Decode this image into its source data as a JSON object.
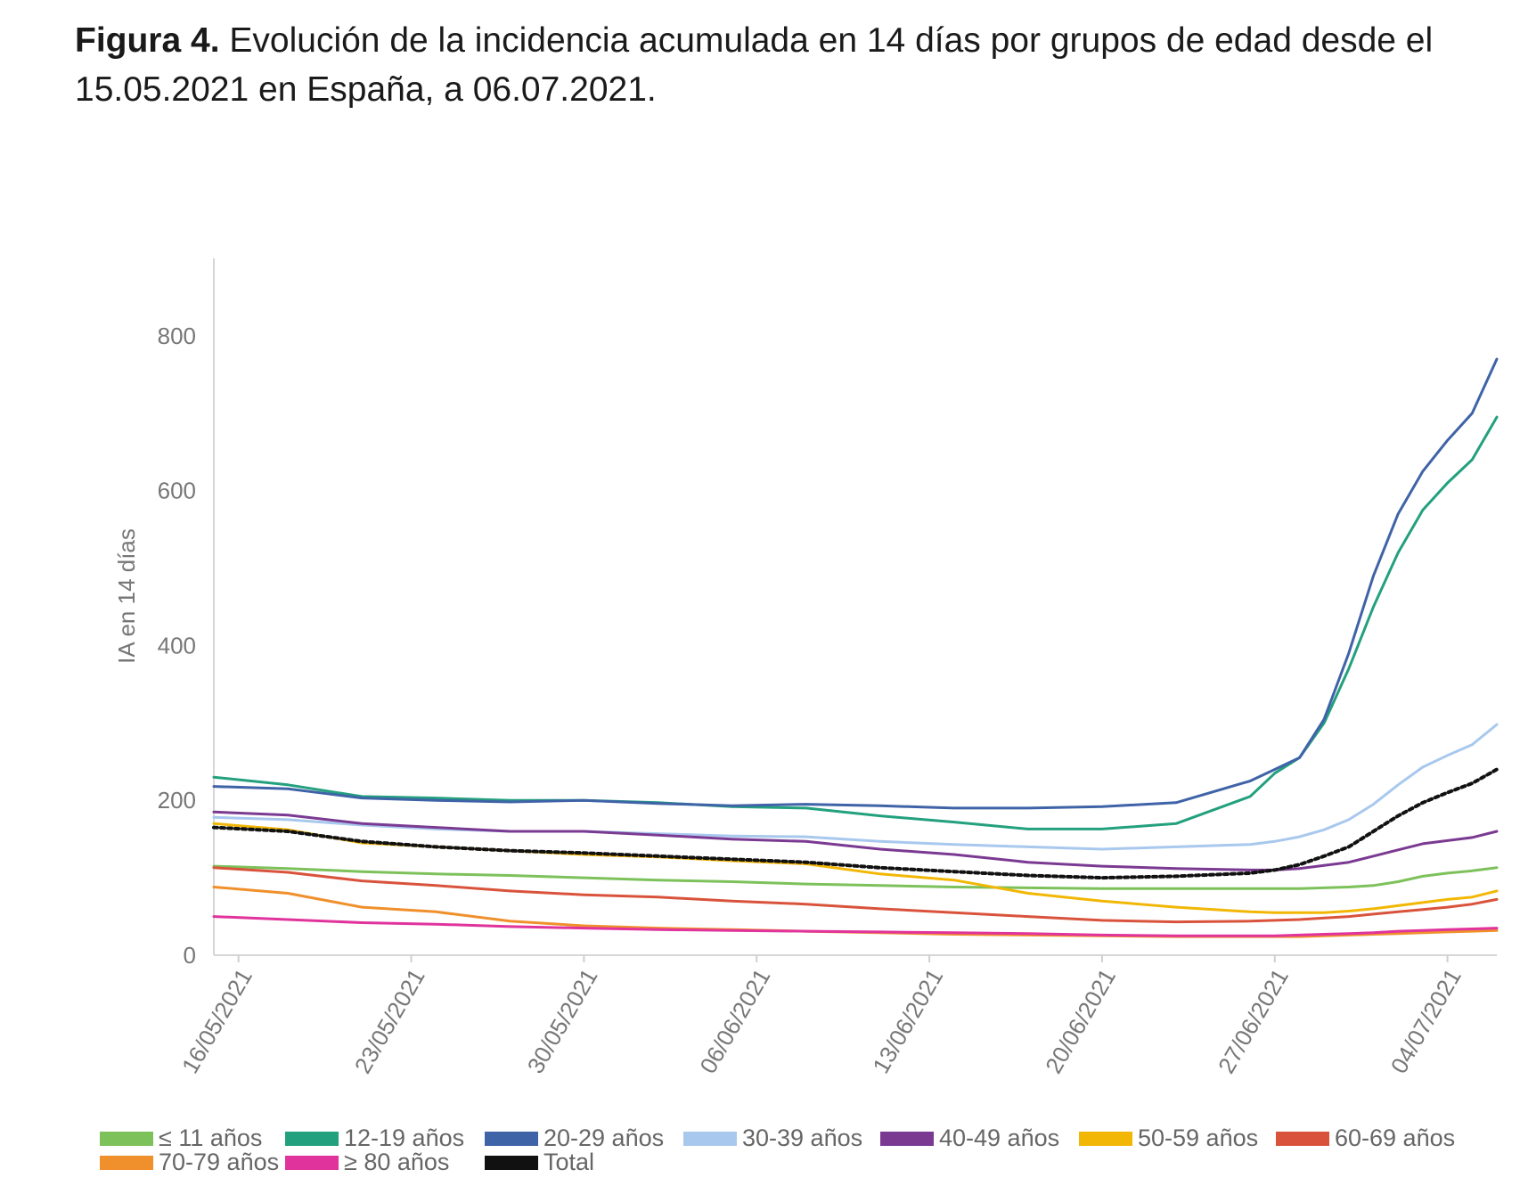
{
  "caption": {
    "label": "Figura 4.",
    "text": "Evolución de la incidencia acumulada en 14 días por grupos de edad desde el 15.05.2021 en España, a 06.07.2021."
  },
  "chart_data": {
    "type": "line",
    "title": "",
    "ylabel": "IA en 14 días",
    "xlabel": "",
    "ylim": [
      0,
      900
    ],
    "yticks": [
      0,
      200,
      400,
      600,
      800
    ],
    "x_range": [
      "15/05/2021",
      "06/07/2021"
    ],
    "xticks": [
      "16/05/2021",
      "23/05/2021",
      "30/05/2021",
      "06/06/2021",
      "13/06/2021",
      "20/06/2021",
      "27/06/2021",
      "04/07/2021"
    ],
    "xtick_day_index": [
      1,
      8,
      15,
      22,
      29,
      36,
      43,
      50
    ],
    "grid": false,
    "legend_position": "bottom",
    "x": [
      "15/05",
      "18/05",
      "21/05",
      "24/05",
      "27/05",
      "30/05",
      "02/06",
      "05/06",
      "08/06",
      "11/06",
      "14/06",
      "17/06",
      "20/06",
      "23/06",
      "26/06",
      "27/06",
      "28/06",
      "29/06",
      "30/06",
      "01/07",
      "02/07",
      "03/07",
      "04/07",
      "05/07",
      "06/07"
    ],
    "series": [
      {
        "name": "≤ 11 años",
        "color": "#7dc15b",
        "dashed": false,
        "values": [
          115,
          112,
          108,
          105,
          103,
          100,
          97,
          95,
          92,
          90,
          88,
          87,
          86,
          86,
          86,
          86,
          86,
          87,
          88,
          90,
          95,
          102,
          106,
          109,
          113
        ]
      },
      {
        "name": "12-19 años",
        "color": "#23a07e",
        "dashed": false,
        "values": [
          230,
          220,
          205,
          203,
          200,
          200,
          197,
          192,
          190,
          180,
          172,
          163,
          163,
          170,
          205,
          235,
          255,
          300,
          370,
          450,
          520,
          575,
          610,
          640,
          695
        ]
      },
      {
        "name": "20-29 años",
        "color": "#3f63a7",
        "dashed": false,
        "values": [
          218,
          215,
          203,
          200,
          198,
          200,
          196,
          193,
          195,
          193,
          190,
          190,
          192,
          197,
          225,
          240,
          255,
          305,
          390,
          490,
          570,
          625,
          665,
          700,
          770
        ]
      },
      {
        "name": "30-39 años",
        "color": "#a8c8ee",
        "dashed": false,
        "values": [
          178,
          175,
          168,
          163,
          160,
          160,
          157,
          154,
          153,
          147,
          143,
          140,
          137,
          140,
          143,
          147,
          153,
          162,
          175,
          195,
          220,
          243,
          258,
          272,
          298
        ]
      },
      {
        "name": "40-49 años",
        "color": "#7b3a92",
        "dashed": false,
        "values": [
          185,
          181,
          170,
          165,
          160,
          160,
          155,
          150,
          147,
          137,
          130,
          120,
          115,
          112,
          110,
          110,
          112,
          116,
          120,
          128,
          136,
          144,
          148,
          152,
          160
        ]
      },
      {
        "name": "50-59 años",
        "color": "#f2b705",
        "dashed": false,
        "values": [
          170,
          162,
          145,
          140,
          135,
          130,
          127,
          122,
          118,
          105,
          97,
          80,
          70,
          62,
          56,
          55,
          55,
          55,
          57,
          60,
          64,
          68,
          72,
          75,
          83
        ]
      },
      {
        "name": "60-69 años",
        "color": "#d9533c",
        "dashed": false,
        "values": [
          113,
          107,
          96,
          90,
          83,
          78,
          75,
          70,
          66,
          60,
          55,
          50,
          45,
          43,
          44,
          45,
          46,
          48,
          50,
          53,
          56,
          59,
          62,
          66,
          72
        ]
      },
      {
        "name": "70-79 años",
        "color": "#f0902c",
        "dashed": false,
        "values": [
          88,
          80,
          62,
          56,
          44,
          38,
          35,
          33,
          31,
          29,
          27,
          26,
          25,
          24,
          24,
          24,
          24,
          25,
          26,
          27,
          28,
          29,
          30,
          31,
          32
        ]
      },
      {
        "name": "≥ 80 años",
        "color": "#e0339c",
        "dashed": false,
        "values": [
          50,
          46,
          42,
          40,
          37,
          35,
          33,
          32,
          31,
          30,
          29,
          28,
          26,
          25,
          25,
          25,
          26,
          27,
          28,
          29,
          31,
          32,
          33,
          34,
          35
        ]
      },
      {
        "name": "Total",
        "color": "#111111",
        "dashed": true,
        "values": [
          165,
          160,
          147,
          140,
          135,
          132,
          128,
          124,
          120,
          113,
          108,
          103,
          100,
          102,
          106,
          110,
          117,
          128,
          140,
          160,
          180,
          197,
          210,
          222,
          240
        ]
      }
    ]
  }
}
